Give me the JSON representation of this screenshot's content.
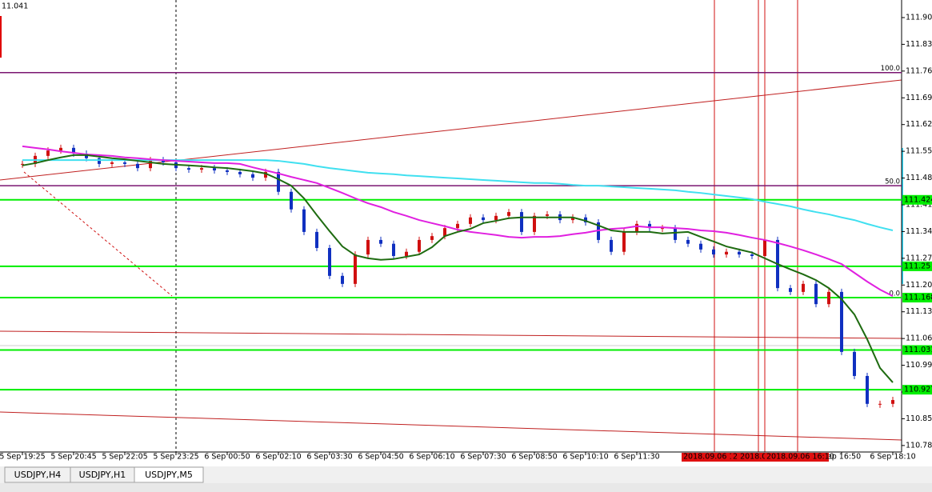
{
  "chart_data": {
    "type": "candlestick",
    "corner_label": "11.041",
    "categories": [
      "5 Sep 19:25",
      null,
      null,
      null,
      "5 Sep 20:45",
      null,
      null,
      null,
      "5 Sep 22:05",
      null,
      null,
      null,
      "5 Sep 23:25",
      null,
      null,
      null,
      "6 Sep 00:50",
      null,
      null,
      null,
      "6 Sep 02:10",
      null,
      null,
      null,
      "6 Sep 03:30",
      null,
      null,
      null,
      "6 Sep 04:50",
      null,
      null,
      null,
      "6 Sep 06:10",
      null,
      null,
      null,
      "6 Sep 07:30",
      null,
      null,
      null,
      "6 Sep 08:50",
      null,
      null,
      null,
      "6 Sep 10:10",
      null,
      null,
      null,
      "6 Sep 11:30",
      null,
      null,
      null,
      null,
      null,
      null,
      null,
      null,
      null,
      null,
      null,
      null,
      null,
      null,
      null,
      "Sep 16:50",
      null,
      null,
      null,
      "6 Sep 18:10"
    ],
    "closes": [
      111.518,
      111.539,
      111.553,
      111.56,
      111.545,
      111.533,
      111.518,
      111.522,
      111.518,
      111.507,
      111.528,
      111.522,
      111.507,
      111.503,
      111.507,
      111.501,
      111.497,
      111.491,
      111.482,
      111.497,
      111.445,
      111.399,
      111.34,
      111.298,
      111.225,
      111.204,
      111.281,
      111.319,
      111.309,
      111.277,
      111.288,
      111.319,
      111.329,
      111.35,
      111.361,
      111.378,
      111.371,
      111.382,
      111.392,
      111.34,
      111.382,
      111.386,
      111.371,
      111.378,
      111.365,
      111.319,
      111.288,
      111.34,
      111.361,
      111.35,
      111.35,
      111.319,
      111.309,
      111.294,
      111.281,
      111.288,
      111.281,
      111.277,
      111.319,
      111.193,
      111.183,
      111.204,
      111.151,
      111.183,
      111.026,
      110.963,
      110.89,
      110.89,
      110.9
    ],
    "up_color": "#d01010",
    "down_color": "#1030c0",
    "series": [
      {
        "color": "#40e0f0",
        "values": [
          111.528,
          111.528,
          111.528,
          111.528,
          111.528,
          111.528,
          111.528,
          111.528,
          111.528,
          111.528,
          111.528,
          111.528,
          111.528,
          111.528,
          111.528,
          111.528,
          111.528,
          111.528,
          111.528,
          111.528,
          111.526,
          111.522,
          111.518,
          111.512,
          111.507,
          111.503,
          111.499,
          111.495,
          111.493,
          111.491,
          111.488,
          111.486,
          111.484,
          111.482,
          111.48,
          111.478,
          111.476,
          111.474,
          111.472,
          111.47,
          111.468,
          111.468,
          111.466,
          111.463,
          111.461,
          111.461,
          111.459,
          111.457,
          111.455,
          111.453,
          111.451,
          111.449,
          111.445,
          111.442,
          111.438,
          111.434,
          111.43,
          111.426,
          111.419,
          111.413,
          111.407,
          111.399,
          111.392,
          111.386,
          111.378,
          111.371,
          111.361,
          111.352,
          111.344
        ]
      },
      {
        "color": "#e020e0",
        "values": [
          111.564,
          111.56,
          111.556,
          111.551,
          111.547,
          111.543,
          111.541,
          111.539,
          111.535,
          111.533,
          111.53,
          111.528,
          111.526,
          111.524,
          111.522,
          111.52,
          111.52,
          111.518,
          111.509,
          111.501,
          111.493,
          111.484,
          111.476,
          111.468,
          111.455,
          111.442,
          111.428,
          111.415,
          111.405,
          111.392,
          111.382,
          111.371,
          111.363,
          111.355,
          111.346,
          111.34,
          111.336,
          111.332,
          111.327,
          111.325,
          111.327,
          111.327,
          111.329,
          111.334,
          111.338,
          111.344,
          111.348,
          111.35,
          111.355,
          111.352,
          111.352,
          111.35,
          111.348,
          111.344,
          111.342,
          111.338,
          111.332,
          111.325,
          111.319,
          111.311,
          111.302,
          111.292,
          111.281,
          111.269,
          111.256,
          111.233,
          111.21,
          111.189,
          111.172
        ]
      },
      {
        "color": "#1e6b10",
        "values": [
          111.514,
          111.52,
          111.528,
          111.535,
          111.541,
          111.541,
          111.537,
          111.533,
          111.53,
          111.526,
          111.522,
          111.518,
          111.516,
          111.514,
          111.512,
          111.509,
          111.507,
          111.503,
          111.499,
          111.493,
          111.478,
          111.461,
          111.428,
          111.384,
          111.342,
          111.302,
          111.279,
          111.271,
          111.267,
          111.269,
          111.275,
          111.281,
          111.3,
          111.329,
          111.34,
          111.348,
          111.363,
          111.369,
          111.376,
          111.378,
          111.378,
          111.378,
          111.378,
          111.378,
          111.369,
          111.357,
          111.344,
          111.34,
          111.34,
          111.34,
          111.336,
          111.338,
          111.34,
          111.327,
          111.315,
          111.302,
          111.294,
          111.286,
          111.271,
          111.256,
          111.242,
          111.229,
          111.214,
          111.193,
          111.164,
          111.124,
          111.059,
          110.984,
          110.946
        ]
      }
    ],
    "ylim": [
      110.764,
      111.947
    ],
    "yticks": [
      111.901,
      111.831,
      111.761,
      111.691,
      111.621,
      111.551,
      111.481,
      111.411,
      111.341,
      111.271,
      111.201,
      111.131,
      111.061,
      110.991,
      110.921,
      110.851,
      110.781
    ],
    "fib_levels": [
      {
        "label": "100.0",
        "value": 111.757
      },
      {
        "label": "50.0",
        "value": 111.461
      },
      {
        "label": "0.0",
        "value": 111.168
      }
    ],
    "fib_color": "#7a1670",
    "levels": [
      111.424,
      111.25,
      111.168,
      111.031,
      110.927
    ],
    "level_color": "#00ee00",
    "vline_labels": [
      "2018.09.06 1",
      "2 2018.09.",
      "2018.09.06 16:10"
    ],
    "tabs": [
      "USDJPY,H4",
      "USDJPY,H1",
      "USDJPY,M5"
    ]
  }
}
